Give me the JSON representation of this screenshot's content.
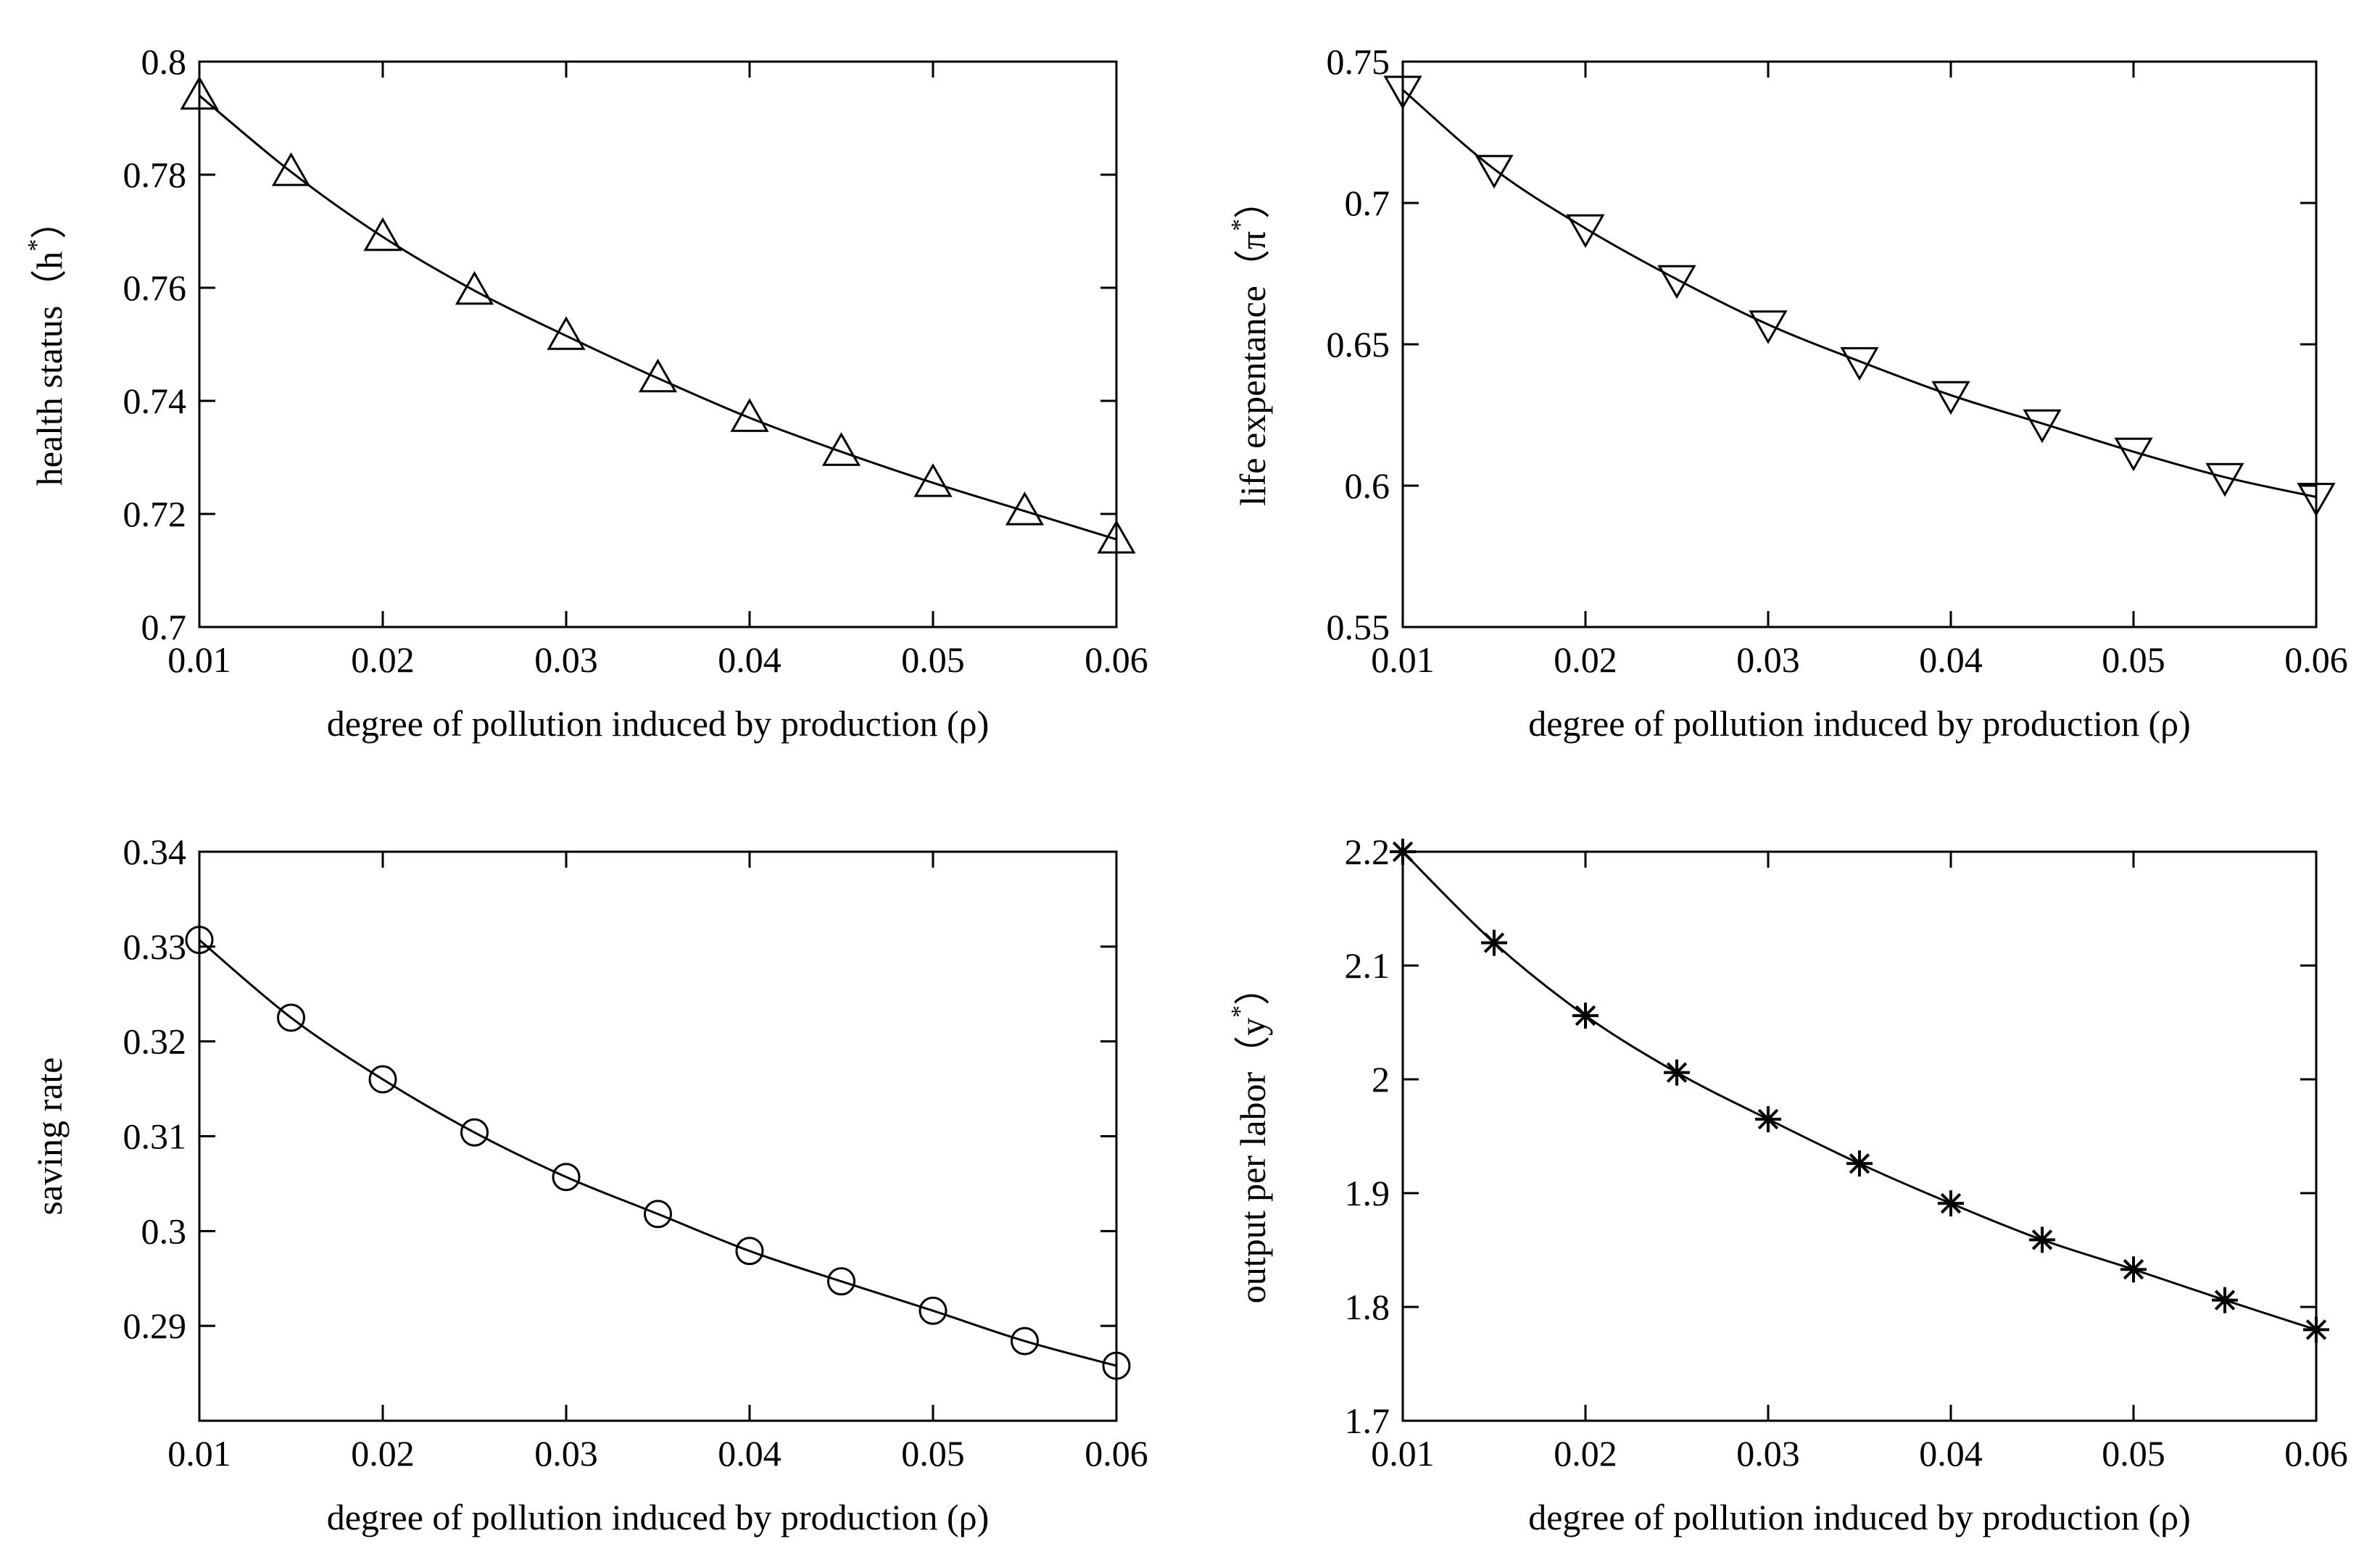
{
  "figure": {
    "background": "#ffffff",
    "line_color": "#000000"
  },
  "chart_data": [
    {
      "id": "panel-health-status",
      "type": "line",
      "marker": "triangle-up",
      "xlabel": "degree of pollution induced by production (ρ)",
      "ylabel": {
        "text": "health status（h",
        "sup": "*",
        "close": "）"
      },
      "xlim": [
        0.01,
        0.06
      ],
      "ylim": [
        0.7,
        0.8
      ],
      "xticks": [
        "0.01",
        "0.02",
        "0.03",
        "0.04",
        "0.05",
        "0.06"
      ],
      "yticks": [
        "0.7",
        "0.72",
        "0.74",
        "0.76",
        "0.78",
        "0.8"
      ],
      "x": [
        0.01,
        0.015,
        0.02,
        0.025,
        0.03,
        0.035,
        0.04,
        0.045,
        0.05,
        0.055,
        0.06
      ],
      "y": [
        0.794,
        0.7805,
        0.769,
        0.7595,
        0.7515,
        0.744,
        0.737,
        0.731,
        0.7255,
        0.7205,
        0.7155
      ]
    },
    {
      "id": "panel-life-expectancy",
      "type": "line",
      "marker": "triangle-down",
      "xlabel": "degree of pollution induced by production (ρ)",
      "ylabel": {
        "text": "life expentance（π",
        "sup": "*",
        "close": "）"
      },
      "xlim": [
        0.01,
        0.06
      ],
      "ylim": [
        0.55,
        0.75
      ],
      "xticks": [
        "0.01",
        "0.02",
        "0.03",
        "0.04",
        "0.05",
        "0.06"
      ],
      "yticks": [
        "0.55",
        "0.6",
        "0.65",
        "0.7",
        "0.75"
      ],
      "x": [
        0.01,
        0.015,
        0.02,
        0.025,
        0.03,
        0.035,
        0.04,
        0.045,
        0.05,
        0.055,
        0.06
      ],
      "y": [
        0.74,
        0.712,
        0.691,
        0.673,
        0.657,
        0.644,
        0.632,
        0.622,
        0.612,
        0.603,
        0.596
      ]
    },
    {
      "id": "panel-saving-rate",
      "type": "line",
      "marker": "circle",
      "xlabel": "degree of pollution induced by production (ρ)",
      "ylabel": {
        "text": "saving rate",
        "sup": "",
        "close": ""
      },
      "xlim": [
        0.01,
        0.06
      ],
      "ylim": [
        0.28,
        0.34
      ],
      "xticks": [
        "0.01",
        "0.02",
        "0.03",
        "0.04",
        "0.05",
        "0.06"
      ],
      "yticks": [
        "0.29",
        "0.3",
        "0.31",
        "0.32",
        "0.33",
        "0.34"
      ],
      "ytick_values": [
        0.29,
        0.3,
        0.31,
        0.32,
        0.33,
        0.34
      ],
      "x": [
        0.01,
        0.015,
        0.02,
        0.025,
        0.03,
        0.035,
        0.04,
        0.045,
        0.05,
        0.055,
        0.06
      ],
      "y": [
        0.3307,
        0.3225,
        0.316,
        0.3104,
        0.3057,
        0.3018,
        0.2979,
        0.2947,
        0.2916,
        0.2884,
        0.2858
      ]
    },
    {
      "id": "panel-output-per-labor",
      "type": "line",
      "marker": "asterisk",
      "xlabel": "degree of pollution induced by production (ρ)",
      "ylabel": {
        "text": "output per labor（y",
        "sup": "*",
        "close": "）"
      },
      "xlim": [
        0.01,
        0.06
      ],
      "ylim": [
        1.7,
        2.2
      ],
      "xticks": [
        "0.01",
        "0.02",
        "0.03",
        "0.04",
        "0.05",
        "0.06"
      ],
      "yticks": [
        "1.7",
        "1.8",
        "1.9",
        "2",
        "2.1",
        "2.2"
      ],
      "x": [
        0.01,
        0.015,
        0.02,
        0.025,
        0.03,
        0.035,
        0.04,
        0.045,
        0.05,
        0.055,
        0.06
      ],
      "y": [
        2.2,
        2.12,
        2.056,
        2.006,
        1.965,
        1.926,
        1.891,
        1.859,
        1.833,
        1.806,
        1.78
      ]
    }
  ]
}
